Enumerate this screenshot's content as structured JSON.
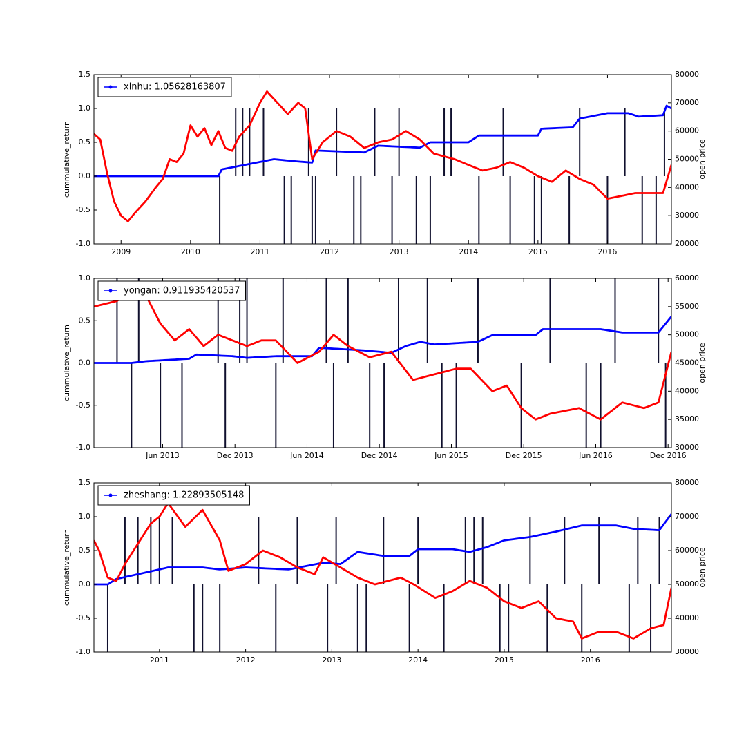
{
  "chart_data": [
    {
      "type": "line",
      "legend": "upper left",
      "ylabel": "cummulative_return",
      "y2label": "open price",
      "xlim": [
        2008.61,
        2016.92
      ],
      "xticks": [
        2009,
        2010,
        2011,
        2012,
        2013,
        2014,
        2015,
        2016
      ],
      "ylim": [
        -1,
        1.5
      ],
      "yticks": [
        {
          "value": -1,
          "label": "-1.0"
        },
        {
          "value": -0.5,
          "label": "-0.5"
        },
        {
          "value": 0,
          "label": "0.0"
        },
        0.5,
        {
          "value": 1,
          "label": "1.0"
        },
        1.5
      ],
      "y2lim": [
        20000,
        80000
      ],
      "y2ticks": [
        20000,
        30000,
        40000,
        50000,
        60000,
        70000,
        80000
      ],
      "series": [
        {
          "type": "bar",
          "color": "#10102e",
          "x": [
            2010.42,
            2010.65,
            2010.75,
            2010.85,
            2011.05,
            2011.35,
            2011.45,
            2011.7,
            2011.75,
            2011.8,
            2012.1,
            2012.35,
            2012.45,
            2012.65,
            2012.9,
            2013.0,
            2013.25,
            2013.45,
            2013.65,
            2013.75,
            2014.15,
            2014.5,
            2014.6,
            2014.95,
            2015.05,
            2015.45,
            2015.6,
            2016.0,
            2016.25,
            2016.5,
            2016.7,
            2016.82
          ],
          "values": [
            -1,
            1,
            1,
            1,
            1,
            -1,
            -1,
            1,
            -1,
            -1,
            1,
            -1,
            -1,
            1,
            -1,
            1,
            -1,
            -1,
            1,
            1,
            -1,
            1,
            -1,
            -1,
            -1,
            -1,
            1,
            -1,
            1,
            -1,
            -1,
            1
          ]
        },
        {
          "type": "line",
          "name": "xinhu: 1.05628163807",
          "color": "#0000ff",
          "x": [
            2008.61,
            2010.4,
            2010.45,
            2010.95,
            2011.2,
            2011.5,
            2011.75,
            2011.8,
            2012.5,
            2012.6,
            2012.7,
            2013.3,
            2013.45,
            2014.0,
            2014.15,
            2015.0,
            2015.05,
            2015.5,
            2015.6,
            2016.0,
            2016.3,
            2016.45,
            2016.8,
            2016.85,
            2016.92
          ],
          "values": [
            0,
            0,
            0.1,
            0.2,
            0.25,
            0.22,
            0.2,
            0.38,
            0.35,
            0.4,
            0.45,
            0.42,
            0.5,
            0.5,
            0.6,
            0.6,
            0.7,
            0.72,
            0.85,
            0.93,
            0.93,
            0.88,
            0.9,
            1.04,
            1.0
          ]
        },
        {
          "type": "line",
          "axis": "y2",
          "color": "#ff0000",
          "x": [
            2008.61,
            2008.7,
            2008.8,
            2008.9,
            2009.0,
            2009.1,
            2009.2,
            2009.35,
            2009.5,
            2009.6,
            2009.7,
            2009.8,
            2009.9,
            2010.0,
            2010.1,
            2010.2,
            2010.3,
            2010.4,
            2010.5,
            2010.6,
            2010.7,
            2010.85,
            2011.0,
            2011.1,
            2011.25,
            2011.4,
            2011.55,
            2011.65,
            2011.75,
            2011.9,
            2012.1,
            2012.3,
            2012.5,
            2012.7,
            2012.9,
            2013.1,
            2013.3,
            2013.5,
            2013.8,
            2014.0,
            2014.2,
            2014.4,
            2014.6,
            2014.8,
            2015.0,
            2015.2,
            2015.4,
            2015.6,
            2015.8,
            2016.0,
            2016.2,
            2016.4,
            2016.6,
            2016.8,
            2016.92
          ],
          "values": [
            59000,
            57000,
            45000,
            35000,
            30000,
            28000,
            31000,
            35000,
            40000,
            43000,
            50000,
            49000,
            52000,
            62000,
            58000,
            61000,
            55000,
            60000,
            54000,
            53000,
            58000,
            62000,
            70000,
            74000,
            70000,
            66000,
            70000,
            68000,
            50000,
            56000,
            60000,
            58000,
            54000,
            56000,
            57000,
            60000,
            57000,
            52000,
            50000,
            48000,
            46000,
            47000,
            49000,
            47000,
            44000,
            42000,
            46000,
            43000,
            41000,
            36000,
            37000,
            38000,
            38000,
            38000,
            48000
          ]
        }
      ]
    },
    {
      "type": "line",
      "legend": "upper left",
      "ylabel": "cummulative_return",
      "y2label": "open price",
      "xlim": [
        2012.94,
        2016.94
      ],
      "xticks": [
        {
          "value": 2013.416,
          "label": "Jun 2013"
        },
        {
          "value": 2013.917,
          "label": "Dec 2013"
        },
        {
          "value": 2014.416,
          "label": "Jun 2014"
        },
        {
          "value": 2014.917,
          "label": "Dec 2014"
        },
        {
          "value": 2015.416,
          "label": "Jun 2015"
        },
        {
          "value": 2015.917,
          "label": "Dec 2015"
        },
        {
          "value": 2016.416,
          "label": "Jun 2016"
        },
        {
          "value": 2016.917,
          "label": "Dec 2016"
        }
      ],
      "ylim": [
        -1,
        1
      ],
      "yticks": [
        {
          "value": -1,
          "label": "-1.0"
        },
        {
          "value": -0.5,
          "label": "-0.5"
        },
        {
          "value": 0,
          "label": "0.0"
        },
        0.5,
        {
          "value": 1,
          "label": "1.0"
        }
      ],
      "y2lim": [
        30000,
        60000
      ],
      "y2ticks": [
        30000,
        35000,
        40000,
        45000,
        50000,
        55000,
        60000
      ],
      "series": [
        {
          "type": "bar",
          "color": "#10102e",
          "x": [
            2013.1,
            2013.2,
            2013.25,
            2013.4,
            2013.55,
            2013.8,
            2013.85,
            2013.95,
            2014.0,
            2014.2,
            2014.25,
            2014.55,
            2014.6,
            2014.7,
            2014.85,
            2014.95,
            2015.05,
            2015.25,
            2015.35,
            2015.45,
            2015.6,
            2015.9,
            2016.1,
            2016.35,
            2016.45,
            2016.55,
            2016.85,
            2016.9
          ],
          "values": [
            1,
            -1,
            1,
            -1,
            -1,
            1,
            -1,
            1,
            1,
            -1,
            1,
            1,
            -1,
            1,
            -1,
            -1,
            1,
            1,
            -1,
            -1,
            1,
            -1,
            1,
            -1,
            -1,
            1,
            1,
            -1
          ]
        },
        {
          "type": "line",
          "name": "yongan: 0.911935420537",
          "color": "#0000ff",
          "x": [
            2012.94,
            2013.2,
            2013.3,
            2013.6,
            2013.65,
            2013.9,
            2014.0,
            2014.2,
            2014.45,
            2014.5,
            2014.8,
            2015.0,
            2015.1,
            2015.2,
            2015.3,
            2015.6,
            2015.7,
            2016.0,
            2016.05,
            2016.45,
            2016.6,
            2016.85,
            2016.94
          ],
          "values": [
            0,
            0,
            0.02,
            0.05,
            0.1,
            0.08,
            0.06,
            0.08,
            0.08,
            0.18,
            0.15,
            0.12,
            0.2,
            0.25,
            0.22,
            0.25,
            0.33,
            0.33,
            0.4,
            0.4,
            0.36,
            0.36,
            0.55
          ]
        },
        {
          "type": "line",
          "axis": "y2",
          "color": "#ff0000",
          "x": [
            2012.94,
            2013.1,
            2013.2,
            2013.3,
            2013.4,
            2013.5,
            2013.6,
            2013.7,
            2013.8,
            2013.9,
            2014.0,
            2014.1,
            2014.2,
            2014.35,
            2014.5,
            2014.6,
            2014.7,
            2014.85,
            2015.0,
            2015.15,
            2015.3,
            2015.45,
            2015.55,
            2015.7,
            2015.8,
            2015.9,
            2016.0,
            2016.1,
            2016.3,
            2016.45,
            2016.6,
            2016.75,
            2016.85,
            2016.94
          ],
          "values": [
            55000,
            56000,
            58000,
            57000,
            52000,
            49000,
            51000,
            48000,
            50000,
            49000,
            48000,
            49000,
            49000,
            45000,
            47000,
            50000,
            48000,
            46000,
            47000,
            42000,
            43000,
            44000,
            44000,
            40000,
            41000,
            37000,
            35000,
            36000,
            37000,
            35000,
            38000,
            37000,
            38000,
            47000
          ]
        }
      ]
    },
    {
      "type": "line",
      "legend": "upper left",
      "ylabel": "cummulative_return",
      "y2label": "open price",
      "xlim": [
        2010.24,
        2016.94
      ],
      "xticks": [
        2011,
        2012,
        2013,
        2014,
        2015,
        2016
      ],
      "ylim": [
        -1,
        1.5
      ],
      "yticks": [
        {
          "value": -1,
          "label": "-1.0"
        },
        {
          "value": -0.5,
          "label": "-0.5"
        },
        {
          "value": 0,
          "label": "0.0"
        },
        0.5,
        {
          "value": 1,
          "label": "1.0"
        },
        1.5
      ],
      "y2lim": [
        30000,
        80000
      ],
      "y2ticks": [
        30000,
        40000,
        50000,
        60000,
        70000,
        80000
      ],
      "series": [
        {
          "type": "bar",
          "color": "#10102e",
          "x": [
            2010.4,
            2010.6,
            2010.75,
            2010.9,
            2011.0,
            2011.15,
            2011.4,
            2011.5,
            2011.7,
            2012.15,
            2012.35,
            2012.6,
            2012.95,
            2013.05,
            2013.3,
            2013.4,
            2013.6,
            2013.9,
            2014.0,
            2014.3,
            2014.55,
            2014.65,
            2014.75,
            2014.95,
            2015.05,
            2015.3,
            2015.5,
            2015.7,
            2015.9,
            2016.1,
            2016.45,
            2016.55,
            2016.7,
            2016.8
          ],
          "values": [
            -1,
            1,
            1,
            1,
            1,
            1,
            -1,
            -1,
            -1,
            1,
            -1,
            1,
            -1,
            1,
            -1,
            -1,
            1,
            -1,
            1,
            -1,
            1,
            1,
            1,
            -1,
            -1,
            1,
            -1,
            1,
            -1,
            1,
            -1,
            1,
            -1,
            1
          ]
        },
        {
          "type": "line",
          "name": "zheshang: 1.22893505148",
          "color": "#0000ff",
          "x": [
            2010.24,
            2010.4,
            2010.5,
            2010.75,
            2011.0,
            2011.1,
            2011.5,
            2011.7,
            2012.0,
            2012.5,
            2012.9,
            2013.1,
            2013.3,
            2013.6,
            2013.9,
            2014.0,
            2014.4,
            2014.6,
            2014.8,
            2015.0,
            2015.3,
            2015.6,
            2015.9,
            2016.3,
            2016.5,
            2016.8,
            2016.94
          ],
          "values": [
            0,
            0,
            0.08,
            0.15,
            0.22,
            0.25,
            0.25,
            0.22,
            0.25,
            0.22,
            0.32,
            0.3,
            0.48,
            0.42,
            0.42,
            0.52,
            0.52,
            0.48,
            0.55,
            0.65,
            0.7,
            0.78,
            0.87,
            0.87,
            0.82,
            0.8,
            1.04
          ]
        },
        {
          "type": "line",
          "axis": "y2",
          "color": "#ff0000",
          "x": [
            2010.24,
            2010.3,
            2010.4,
            2010.5,
            2010.6,
            2010.75,
            2010.9,
            2011.0,
            2011.1,
            2011.3,
            2011.5,
            2011.7,
            2011.8,
            2012.0,
            2012.2,
            2012.4,
            2012.6,
            2012.8,
            2012.9,
            2013.1,
            2013.3,
            2013.5,
            2013.8,
            2013.95,
            2014.2,
            2014.4,
            2014.6,
            2014.8,
            2015.0,
            2015.2,
            2015.4,
            2015.6,
            2015.8,
            2015.9,
            2016.1,
            2016.3,
            2016.5,
            2016.7,
            2016.85,
            2016.94
          ],
          "values": [
            63000,
            60000,
            52000,
            51000,
            56000,
            62000,
            68000,
            70000,
            74000,
            67000,
            72000,
            63000,
            54000,
            56000,
            60000,
            58000,
            55000,
            53000,
            58000,
            55000,
            52000,
            50000,
            52000,
            50000,
            46000,
            48000,
            51000,
            49000,
            45000,
            43000,
            45000,
            40000,
            39000,
            34000,
            36000,
            36000,
            34000,
            37000,
            38000,
            49000
          ]
        }
      ]
    }
  ]
}
